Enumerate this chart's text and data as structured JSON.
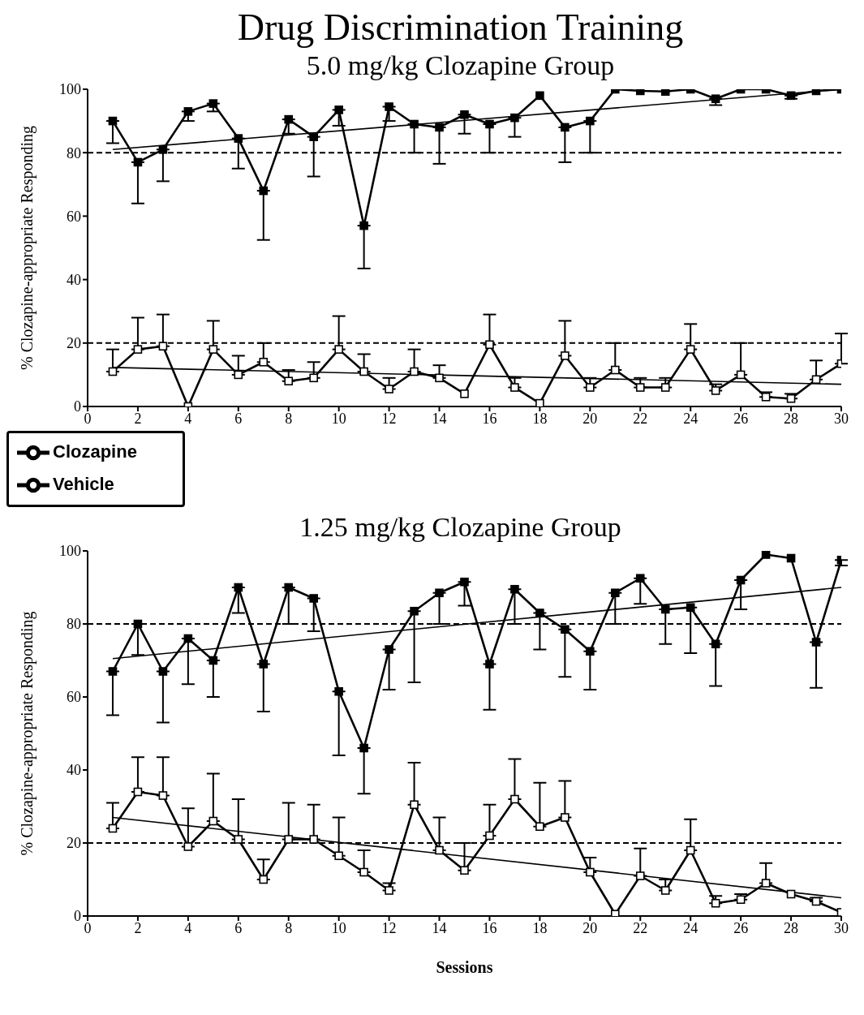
{
  "chart_data": [
    {
      "type": "line",
      "title": "Drug Discrimination Training",
      "subtitle": "5.0 mg/kg Clozapine Group",
      "ylabel": "% Clozapine-appropriate Responding",
      "x": [
        1,
        2,
        3,
        4,
        5,
        6,
        7,
        8,
        9,
        10,
        11,
        12,
        13,
        14,
        15,
        16,
        17,
        18,
        19,
        20,
        21,
        22,
        23,
        24,
        25,
        26,
        27,
        28,
        29,
        30
      ],
      "xlim": [
        0,
        30
      ],
      "xticks": [
        0,
        2,
        4,
        6,
        8,
        10,
        12,
        14,
        16,
        18,
        20,
        22,
        24,
        26,
        28,
        30
      ],
      "ylim": [
        0,
        100
      ],
      "yticks": [
        0,
        20,
        40,
        60,
        80,
        100
      ],
      "marker": "square",
      "line_style": "solid",
      "legend": "bottom left",
      "series": [
        {
          "name": "Clozapine",
          "color": "#000000",
          "values": [
            90,
            77,
            81,
            93,
            95.5,
            84.5,
            68,
            90.5,
            85,
            93.5,
            57,
            94.5,
            89,
            88,
            92,
            89,
            91,
            98,
            88,
            90,
            100,
            99.5,
            99.3,
            100,
            97,
            100,
            100,
            98,
            99.5,
            100
          ],
          "errors": [
            [
              83,
              90
            ],
            [
              64,
              77
            ],
            [
              71,
              81
            ],
            [
              90,
              93
            ],
            [
              93,
              95.5
            ],
            [
              75,
              84.5
            ],
            [
              52.5,
              68
            ],
            [
              86,
              90.5
            ],
            [
              72.5,
              85
            ],
            [
              88.5,
              93.5
            ],
            [
              43.5,
              57
            ],
            [
              90,
              94.5
            ],
            [
              80,
              89
            ],
            [
              76.5,
              88
            ],
            [
              86,
              92
            ],
            [
              80,
              89
            ],
            [
              85,
              91
            ],
            null,
            [
              77,
              88
            ],
            [
              80,
              90
            ],
            null,
            null,
            null,
            null,
            [
              95,
              97
            ],
            null,
            null,
            [
              97,
              98
            ],
            null,
            null
          ]
        },
        {
          "name": "Vehicle",
          "color": "#000000",
          "values": [
            11,
            18,
            19,
            0,
            18,
            10,
            14,
            8,
            9,
            18,
            11,
            5.5,
            11,
            9,
            4,
            19.5,
            6,
            1,
            16,
            6,
            11.5,
            6,
            6,
            18,
            5,
            10,
            3,
            2.5,
            8.5,
            13.5
          ],
          "errors": [
            [
              11,
              18
            ],
            [
              18,
              28
            ],
            [
              19,
              29
            ],
            null,
            [
              18,
              27
            ],
            [
              10,
              16
            ],
            [
              14,
              20
            ],
            [
              8,
              11.5
            ],
            [
              9,
              14
            ],
            [
              18,
              28.5
            ],
            [
              11,
              16.5
            ],
            [
              5.5,
              9
            ],
            [
              11,
              18
            ],
            [
              9,
              13
            ],
            null,
            [
              19.5,
              29
            ],
            [
              6,
              9
            ],
            null,
            [
              16,
              27
            ],
            [
              6,
              9
            ],
            [
              11.5,
              20
            ],
            [
              6,
              9
            ],
            [
              6,
              9
            ],
            [
              18,
              26
            ],
            [
              5,
              7
            ],
            [
              10,
              20
            ],
            [
              3,
              4.5
            ],
            [
              2.5,
              4
            ],
            [
              8.5,
              14.5
            ],
            [
              13.5,
              23
            ]
          ]
        },
        {
          "type": "line",
          "color": "#000000",
          "values": [
            81,
            null,
            null,
            null,
            null,
            null,
            null,
            null,
            null,
            null,
            null,
            null,
            null,
            null,
            null,
            null,
            null,
            null,
            null,
            null,
            null,
            null,
            null,
            null,
            null,
            null,
            null,
            null,
            null,
            100
          ],
          "marker": "none"
        },
        {
          "type": "line",
          "color": "#000000",
          "values": [
            12.3,
            null,
            null,
            null,
            null,
            null,
            null,
            null,
            null,
            null,
            null,
            null,
            null,
            null,
            null,
            null,
            null,
            null,
            null,
            null,
            null,
            null,
            null,
            null,
            null,
            null,
            null,
            null,
            null,
            7
          ],
          "marker": "none"
        }
      ],
      "ref_lines": [
        {
          "axis": "y",
          "value": 80,
          "line_style": "dashed"
        },
        {
          "axis": "y",
          "value": 20,
          "line_style": "dashed"
        }
      ]
    },
    {
      "type": "line",
      "title": "1.25 mg/kg Clozapine Group",
      "xlabel": "Sessions",
      "ylabel": "% Clozapine-appropriate Responding",
      "x": [
        1,
        2,
        3,
        4,
        5,
        6,
        7,
        8,
        9,
        10,
        11,
        12,
        13,
        14,
        15,
        16,
        17,
        18,
        19,
        20,
        21,
        22,
        23,
        24,
        25,
        26,
        27,
        28,
        29,
        30
      ],
      "xlim": [
        0,
        30
      ],
      "xticks": [
        0,
        2,
        4,
        6,
        8,
        10,
        12,
        14,
        16,
        18,
        20,
        22,
        24,
        26,
        28,
        30
      ],
      "ylim": [
        0,
        100
      ],
      "yticks": [
        0,
        20,
        40,
        60,
        80,
        100
      ],
      "marker": "square",
      "line_style": "solid",
      "series": [
        {
          "color": "#000000",
          "values": [
            67,
            80,
            67,
            76,
            70,
            90,
            69,
            90,
            87,
            61.5,
            46,
            73,
            83.5,
            88.5,
            91.5,
            69,
            89.5,
            83,
            78.5,
            72.5,
            88.5,
            92.5,
            84,
            84.5,
            74.5,
            92,
            99,
            98,
            75,
            97.5
          ],
          "errors": [
            [
              55,
              67
            ],
            [
              71.5,
              80
            ],
            [
              53,
              67
            ],
            [
              63.5,
              76
            ],
            [
              60,
              70
            ],
            [
              83,
              90
            ],
            [
              56,
              69
            ],
            [
              80,
              90
            ],
            [
              78,
              87
            ],
            [
              44,
              61.5
            ],
            [
              33.5,
              46
            ],
            [
              62,
              73
            ],
            [
              64,
              83.5
            ],
            [
              80,
              88.5
            ],
            [
              85,
              91.5
            ],
            [
              56.5,
              69
            ],
            [
              80,
              89.5
            ],
            [
              73,
              83
            ],
            [
              65.5,
              78.5
            ],
            [
              62,
              72.5
            ],
            [
              80,
              88.5
            ],
            [
              85.5,
              92.5
            ],
            [
              74.5,
              84
            ],
            [
              72,
              84.5
            ],
            [
              63,
              74.5
            ],
            [
              84,
              92
            ],
            null,
            null,
            [
              62.5,
              75
            ],
            [
              96,
              97.5
            ]
          ]
        },
        {
          "color": "#000000",
          "values": [
            24,
            34,
            33,
            19,
            26,
            21,
            10,
            21,
            21,
            16.5,
            12,
            7,
            30.5,
            18,
            12.5,
            22,
            32,
            24.5,
            27,
            12,
            0.5,
            11,
            7,
            18,
            3.5,
            4.5,
            9,
            6,
            4,
            1
          ],
          "errors": [
            [
              24,
              31
            ],
            [
              34,
              43.5
            ],
            [
              33,
              43.5
            ],
            [
              19,
              29.5
            ],
            [
              26,
              39
            ],
            [
              21,
              32
            ],
            [
              10,
              15.5
            ],
            [
              21,
              31
            ],
            [
              21,
              30.5
            ],
            [
              16.5,
              27
            ],
            [
              12,
              18
            ],
            [
              7,
              9
            ],
            [
              30.5,
              42
            ],
            [
              18,
              27
            ],
            [
              12.5,
              20
            ],
            [
              22,
              30.5
            ],
            [
              32,
              43
            ],
            [
              24.5,
              36.5
            ],
            [
              27,
              37
            ],
            [
              12,
              16
            ],
            null,
            [
              11,
              18.5
            ],
            [
              7,
              10
            ],
            [
              18,
              26.5
            ],
            [
              3.5,
              5.5
            ],
            [
              4.5,
              6
            ],
            [
              9,
              14.5
            ],
            null,
            [
              4,
              5
            ],
            null
          ]
        },
        {
          "type": "line",
          "color": "#000000",
          "values": [
            70.5,
            null,
            null,
            null,
            null,
            null,
            null,
            null,
            null,
            null,
            null,
            null,
            null,
            null,
            null,
            null,
            null,
            null,
            null,
            null,
            null,
            null,
            null,
            null,
            null,
            null,
            null,
            null,
            null,
            90
          ],
          "marker": "none"
        },
        {
          "type": "line",
          "color": "#000000",
          "values": [
            27,
            null,
            null,
            null,
            null,
            null,
            null,
            null,
            null,
            null,
            null,
            null,
            null,
            null,
            null,
            null,
            null,
            null,
            null,
            null,
            null,
            null,
            null,
            null,
            null,
            null,
            null,
            null,
            null,
            5
          ],
          "marker": "none"
        }
      ],
      "ref_lines": [
        {
          "axis": "y",
          "value": 80,
          "line_style": "dashed"
        },
        {
          "axis": "y",
          "value": 20,
          "line_style": "dashed"
        }
      ]
    }
  ]
}
